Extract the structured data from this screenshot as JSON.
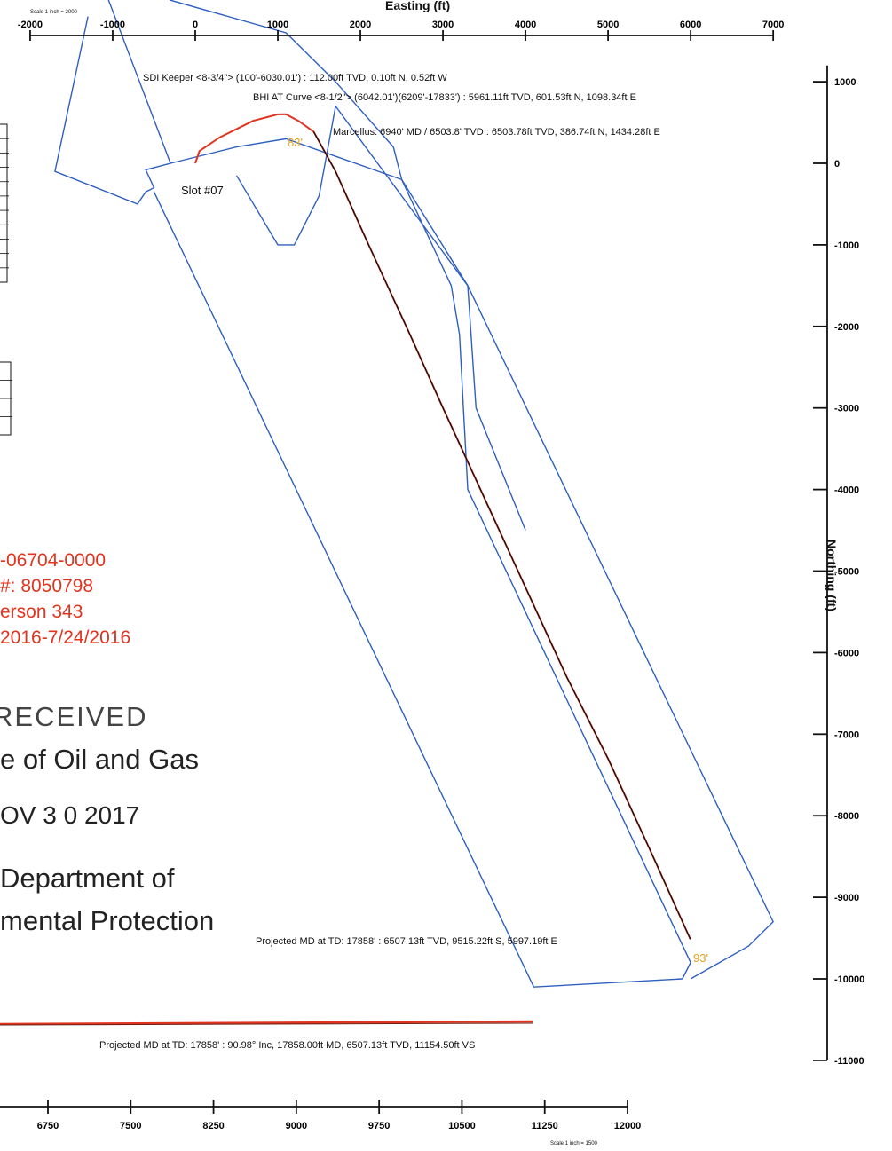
{
  "plan_view": {
    "x_axis_title": "Easting (ft)",
    "y_axis_title": "Northing (ft)",
    "scale_note": "Scale 1 inch = 2000",
    "x_ticks": [
      -2000,
      -1000,
      0,
      1000,
      2000,
      3000,
      4000,
      5000,
      6000,
      7000
    ],
    "y_ticks": [
      1000,
      0,
      -1000,
      -2000,
      -3000,
      -4000,
      -5000,
      -6000,
      -7000,
      -8000,
      -9000,
      -10000,
      -11000
    ],
    "annotations": [
      {
        "id": "sdi_keeper",
        "text": "SDI Keeper <8-3/4\"> (100'-6030.01') : 112.00ft TVD, 0.10ft N, 0.52ft W"
      },
      {
        "id": "bhi_curve",
        "text": "BHI AT Curve <8-1/2\"> (6042.01')(6209'-17833') : 5961.11ft TVD, 601.53ft N, 1098.34ft E"
      },
      {
        "id": "marcellus",
        "text": "Marcellus: 6940' MD / 6503.8' TVD : 6503.78ft TVD, 386.74ft N, 1434.28ft E"
      },
      {
        "id": "slot",
        "text": "Slot #07"
      },
      {
        "id": "projected_plan",
        "text": "Projected MD at TD: 17858' : 6507.13ft TVD, 9515.22ft S, 5997.19ft E"
      },
      {
        "id": "ofs_top",
        "text": "83'"
      },
      {
        "id": "ofs_bottom",
        "text": "93'"
      }
    ]
  },
  "section_view": {
    "scale_note": "Scale 1 inch = 1500",
    "x_ticks": [
      6750,
      7500,
      8250,
      9000,
      9750,
      10500,
      11250,
      12000
    ],
    "projected_label": "Projected MD at TD: 17858' : 90.98° Inc, 17858.00ft MD, 6507.13ft TVD, 11154.50ft VS"
  },
  "stamp": {
    "api_lines": [
      "-06704-0000",
      "#: 8050798",
      "erson 343",
      "2016-7/24/2016"
    ],
    "received": "RECEIVED",
    "office": "e of Oil and Gas",
    "date": "OV 3 0 2017",
    "dept_line1": "Department of",
    "dept_line2": "mental Protection"
  },
  "colors": {
    "lease": "#2f5fbf",
    "wellpath": "#e0341f",
    "planned": "#111111",
    "offset_label": "#e6a318"
  },
  "chart_data": {
    "type": "line",
    "x_range": [
      -2000,
      7500
    ],
    "y_range": [
      -11000,
      1200
    ],
    "xlabel": "Easting (ft)",
    "ylabel": "Northing (ft)",
    "series": [
      {
        "color": "#e0341f",
        "x": [
          0,
          50,
          300,
          700,
          1000,
          1098,
          1250,
          1434,
          1700,
          2100,
          2600,
          3000,
          3500,
          4000,
          4500,
          5000,
          5500,
          5997
        ],
        "y": [
          0,
          150,
          320,
          520,
          600,
          601,
          520,
          387,
          -100,
          -1000,
          -2100,
          -3000,
          -4100,
          -5200,
          -6300,
          -7300,
          -8400,
          -9515
        ]
      },
      {
        "color": "#111111",
        "x": [
          1434,
          1700,
          2100,
          2600,
          3000,
          3500,
          4000,
          4500,
          5000,
          5500,
          5997
        ],
        "y": [
          387,
          -100,
          -1000,
          -2100,
          -3000,
          -4100,
          -5200,
          -6300,
          -7300,
          -8400,
          -9515
        ]
      }
    ],
    "lease_boundaries": [
      {
        "x": [
          -1300,
          -1700,
          -700,
          -600,
          -500,
          -600,
          -300,
          -1200,
          -1100
        ],
        "y": [
          1800,
          -100,
          -500,
          -350,
          -300,
          -80,
          0,
          2400,
          2400
        ]
      },
      {
        "x": [
          -300,
          500,
          1100,
          2500,
          3100,
          3200,
          3300,
          6000,
          5900
        ],
        "y": [
          0,
          200,
          300,
          -200,
          -1500,
          -2100,
          -4000,
          -9800,
          -10000
        ]
      },
      {
        "x": [
          -500,
          4100,
          5900
        ],
        "y": [
          -350,
          -10100,
          -10000
        ]
      },
      {
        "x": [
          500,
          1000,
          1200,
          1500,
          1700,
          3300,
          7000,
          6700,
          6000
        ],
        "y": [
          -150,
          -1000,
          -1000,
          -400,
          700,
          -1500,
          -9300,
          -9600,
          -10000
        ]
      },
      {
        "x": [
          -1300,
          -1200,
          -500,
          -300,
          1100,
          1700,
          2400,
          2500,
          3300,
          3400,
          4000
        ],
        "y": [
          2400,
          2500,
          2200,
          2000,
          1600,
          1000,
          200,
          -200,
          -1500,
          -3000,
          -4500
        ]
      }
    ]
  }
}
